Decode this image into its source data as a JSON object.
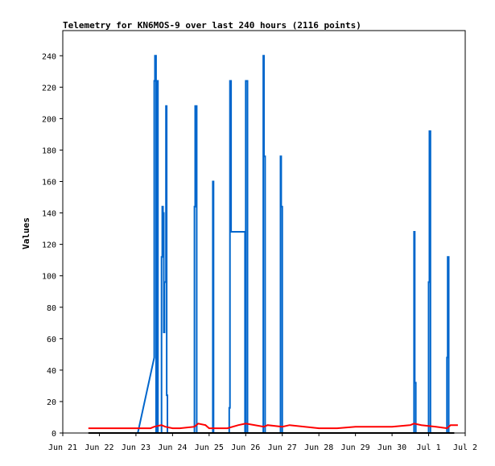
{
  "chart_data": {
    "type": "line",
    "title": "Telemetry for KN6MOS-9 over last 240 hours (2116 points)",
    "xlabel": "",
    "ylabel": "Values",
    "x_ticks": [
      "Jun 21",
      "Jun 22",
      "Jun 23",
      "Jun 24",
      "Jun 25",
      "Jun 26",
      "Jun 27",
      "Jun 28",
      "Jun 29",
      "Jun 30",
      "Jul 1",
      "Jul 2"
    ],
    "y_ticks": [
      0,
      20,
      40,
      60,
      80,
      100,
      120,
      140,
      160,
      180,
      200,
      220,
      240
    ],
    "xlim": [
      0,
      11
    ],
    "ylim": [
      0,
      256
    ],
    "grid": false,
    "colors": {
      "series_a": "#0066cc",
      "series_b": "#ff0000",
      "series_c": "#000000"
    },
    "series": [
      {
        "color_key": "series_a",
        "x": [
          2.05,
          2.5,
          2.5,
          2.52,
          2.52,
          2.55,
          2.55,
          2.57,
          2.57,
          2.6,
          2.6,
          2.7,
          2.7,
          2.72,
          2.72,
          2.74,
          2.74,
          2.76,
          2.76,
          2.78,
          2.78,
          2.8,
          2.8,
          2.82,
          2.82,
          2.84,
          2.84,
          2.86,
          2.86,
          2.88,
          2.88,
          2.9,
          2.9,
          3.6,
          3.6,
          3.62,
          3.62,
          3.64,
          3.64,
          3.66,
          3.66,
          4.1,
          4.1,
          4.12,
          4.12,
          4.55,
          4.55,
          4.57,
          4.57,
          4.6,
          4.6,
          4.98,
          4.98,
          5.0,
          5.0,
          5.03,
          5.03,
          5.05,
          5.05,
          5.48,
          5.48,
          5.5,
          5.5,
          5.53,
          5.53,
          5.95,
          5.95,
          5.97,
          5.97,
          6.0,
          6.0,
          9.6,
          9.6,
          9.62,
          9.62,
          9.65,
          9.65,
          10.0,
          10.0,
          10.02,
          10.02,
          10.05,
          10.05,
          10.5,
          10.5,
          10.52,
          10.52,
          10.55,
          10.55,
          10.58
        ],
        "y": [
          0,
          48,
          224,
          224,
          240,
          240,
          0,
          0,
          224,
          224,
          0,
          0,
          112,
          112,
          144,
          144,
          140,
          140,
          64,
          64,
          96,
          96,
          96,
          96,
          208,
          208,
          24,
          24,
          0,
          0,
          0,
          0,
          0,
          0,
          144,
          144,
          208,
          208,
          208,
          208,
          0,
          0,
          160,
          160,
          0,
          0,
          16,
          16,
          224,
          224,
          128,
          128,
          0,
          0,
          224,
          224,
          224,
          224,
          0,
          0,
          240,
          240,
          176,
          176,
          0,
          0,
          176,
          176,
          144,
          144,
          0,
          0,
          128,
          128,
          32,
          32,
          0,
          0,
          96,
          96,
          192,
          192,
          0,
          0,
          48,
          48,
          112,
          112,
          0,
          0
        ]
      },
      {
        "color_key": "series_b",
        "x": [
          0.7,
          2.4,
          2.5,
          2.7,
          2.8,
          3.0,
          3.2,
          3.6,
          3.7,
          3.9,
          4.0,
          4.5,
          4.8,
          5.0,
          5.5,
          5.6,
          6.0,
          6.2,
          7.0,
          7.5,
          8.0,
          8.5,
          9.0,
          9.5,
          9.6,
          9.8,
          10.2,
          10.5,
          10.6,
          10.8
        ],
        "y": [
          3,
          3,
          4,
          5,
          4,
          3,
          3,
          4,
          6,
          5,
          3,
          3,
          5,
          6,
          4,
          5,
          4,
          5,
          3,
          3,
          4,
          4,
          4,
          5,
          6,
          5,
          4,
          3,
          5,
          5
        ]
      },
      {
        "color_key": "series_c",
        "x": [
          0.7,
          10.7
        ],
        "y": [
          0,
          0
        ]
      }
    ]
  }
}
